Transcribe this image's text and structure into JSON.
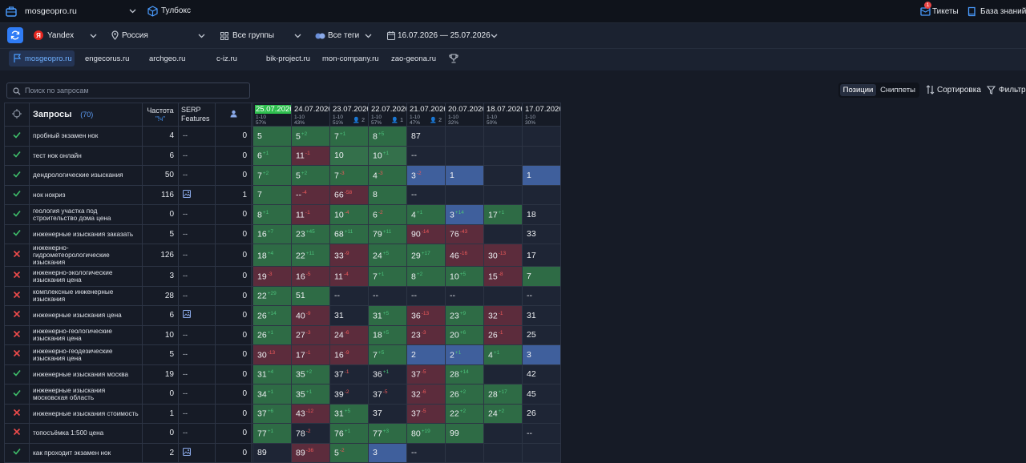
{
  "topbar": {
    "project": "mosgeopro.ru",
    "toolbox": "Тулбокс",
    "tickets": "Тикеты",
    "tickets_badge": "1",
    "knowledge": "База знаний"
  },
  "toolbar": {
    "engine": "Yandex",
    "region": "Россия",
    "groups": "Все группы",
    "tags": "Все теги",
    "date_range": "16.07.2026 — 25.07.2026"
  },
  "sites": [
    "mosgeopro.ru",
    "engecorus.ru",
    "archgeo.ru",
    "c-iz.ru",
    "bik-project.ru",
    "mon-company.ru",
    "zao-geona.ru"
  ],
  "filterbar": {
    "search_placeholder": "Поиск по запросам",
    "view_positions": "Позиции",
    "view_snippets": "Сниппеты",
    "sort": "Сортировка",
    "filter": "Фильтр"
  },
  "table": {
    "queries_label": "Запросы",
    "queries_count": "(70)",
    "freq_label": "Частота",
    "freq_sub": "\"!ч\"",
    "serp_label_1": "SERP",
    "serp_label_2": "Features",
    "dates": [
      {
        "date": "25.07.2026",
        "top": "1-10",
        "pct": "57%",
        "users": ""
      },
      {
        "date": "24.07.2026",
        "top": "1-10",
        "pct": "43%",
        "users": ""
      },
      {
        "date": "23.07.2026",
        "top": "1-10",
        "pct": "51%",
        "users": "2"
      },
      {
        "date": "22.07.2026",
        "top": "1-10",
        "pct": "57%",
        "users": "1"
      },
      {
        "date": "21.07.2026",
        "top": "1-10",
        "pct": "47%",
        "users": "2"
      },
      {
        "date": "20.07.2026",
        "top": "1-10",
        "pct": "32%",
        "users": ""
      },
      {
        "date": "18.07.2026",
        "top": "1-10",
        "pct": "50%",
        "users": ""
      },
      {
        "date": "17.07.2026",
        "top": "1-10",
        "pct": "30%",
        "users": ""
      }
    ],
    "rows": [
      {
        "ok": true,
        "q": "пробный экзамен нок",
        "f": "4",
        "s": "--",
        "u": "0",
        "cells": [
          [
            "5",
            "",
            "",
            "g"
          ],
          [
            "5",
            "2",
            "up",
            "g"
          ],
          [
            "7",
            "1",
            "up",
            "g"
          ],
          [
            "8",
            "5",
            "up",
            "g"
          ],
          [
            "87",
            "",
            "",
            "n"
          ],
          [
            "",
            "",
            "",
            "n"
          ],
          [
            "",
            "",
            "",
            "n"
          ],
          [
            "",
            "",
            "",
            "n"
          ]
        ]
      },
      {
        "ok": true,
        "q": "тест нок онлайн",
        "f": "6",
        "s": "--",
        "u": "0",
        "cells": [
          [
            "6",
            "1",
            "up",
            "g"
          ],
          [
            "11",
            "1",
            "dn",
            "r"
          ],
          [
            "10",
            "",
            "",
            "g2"
          ],
          [
            "10",
            "1",
            "up",
            "g2"
          ],
          [
            "--",
            "",
            "",
            "n"
          ],
          [
            "",
            "",
            "",
            "n"
          ],
          [
            "",
            "",
            "",
            "n"
          ],
          [
            "",
            "",
            "",
            "n"
          ]
        ]
      },
      {
        "ok": true,
        "q": "дендрологические изыскания",
        "f": "50",
        "s": "--",
        "u": "0",
        "cells": [
          [
            "7",
            "2",
            "up",
            "g"
          ],
          [
            "5",
            "2",
            "up",
            "g"
          ],
          [
            "7",
            "3",
            "dn",
            "g"
          ],
          [
            "4",
            "3",
            "dn",
            "g"
          ],
          [
            "3",
            "2",
            "dn",
            "b"
          ],
          [
            "1",
            "",
            "",
            "b"
          ],
          [
            "",
            "",
            "",
            "n"
          ],
          [
            "1",
            "",
            "",
            "b"
          ]
        ]
      },
      {
        "ok": true,
        "q": "нок нокриз",
        "f": "116",
        "s": "img",
        "u": "1",
        "cells": [
          [
            "7",
            "",
            "",
            "g"
          ],
          [
            "--",
            "4",
            "dn",
            "r"
          ],
          [
            "66",
            "58",
            "dn",
            "r"
          ],
          [
            "8",
            "",
            "",
            "g"
          ],
          [
            "--",
            "",
            "",
            "n"
          ],
          [
            "",
            "",
            "",
            "n"
          ],
          [
            "",
            "",
            "",
            "n"
          ],
          [
            "",
            "",
            "",
            "n"
          ]
        ]
      },
      {
        "ok": true,
        "q": "геология участка под строительство дома цена",
        "f": "0",
        "s": "--",
        "u": "0",
        "cells": [
          [
            "8",
            "1",
            "up",
            "g"
          ],
          [
            "11",
            "1",
            "dn",
            "r"
          ],
          [
            "10",
            "4",
            "dn",
            "g"
          ],
          [
            "6",
            "2",
            "dn",
            "g"
          ],
          [
            "4",
            "1",
            "up",
            "g"
          ],
          [
            "3",
            "14",
            "up",
            "b"
          ],
          [
            "17",
            "1",
            "up",
            "g"
          ],
          [
            "18",
            "",
            "",
            "n"
          ]
        ]
      },
      {
        "ok": true,
        "q": "инженерные изыскания заказать",
        "f": "5",
        "s": "--",
        "u": "0",
        "cells": [
          [
            "16",
            "7",
            "up",
            "g"
          ],
          [
            "23",
            "45",
            "up",
            "g"
          ],
          [
            "68",
            "11",
            "up",
            "g"
          ],
          [
            "79",
            "11",
            "up",
            "g"
          ],
          [
            "90",
            "14",
            "dn",
            "r"
          ],
          [
            "76",
            "43",
            "dn",
            "r"
          ],
          [
            "",
            "",
            "",
            "n"
          ],
          [
            "33",
            "",
            "",
            "n"
          ]
        ]
      },
      {
        "ok": false,
        "q": "инженерно-гидрометеорологические изыскания",
        "f": "126",
        "s": "--",
        "u": "0",
        "cells": [
          [
            "18",
            "4",
            "up",
            "g"
          ],
          [
            "22",
            "11",
            "up",
            "g"
          ],
          [
            "33",
            "9",
            "dn",
            "r"
          ],
          [
            "24",
            "5",
            "up",
            "g"
          ],
          [
            "29",
            "17",
            "up",
            "g"
          ],
          [
            "46",
            "16",
            "dn",
            "r"
          ],
          [
            "30",
            "13",
            "dn",
            "r"
          ],
          [
            "17",
            "",
            "",
            "n"
          ]
        ]
      },
      {
        "ok": false,
        "q": "инженерно-экологические изыскания цена",
        "f": "3",
        "s": "--",
        "u": "0",
        "cells": [
          [
            "19",
            "3",
            "dn",
            "r"
          ],
          [
            "16",
            "5",
            "dn",
            "r"
          ],
          [
            "11",
            "4",
            "dn",
            "r"
          ],
          [
            "7",
            "1",
            "up",
            "g"
          ],
          [
            "8",
            "2",
            "up",
            "g"
          ],
          [
            "10",
            "5",
            "up",
            "g"
          ],
          [
            "15",
            "8",
            "dn",
            "r"
          ],
          [
            "7",
            "",
            "",
            "g"
          ]
        ]
      },
      {
        "ok": false,
        "q": "комплексные инженерные изыскания",
        "f": "28",
        "s": "--",
        "u": "0",
        "cells": [
          [
            "22",
            "29",
            "up",
            "g"
          ],
          [
            "51",
            "",
            "",
            "g"
          ],
          [
            "--",
            "",
            "",
            "n"
          ],
          [
            "--",
            "",
            "",
            "n"
          ],
          [
            "--",
            "",
            "",
            "n"
          ],
          [
            "--",
            "",
            "",
            "n"
          ],
          [
            "",
            "",
            "",
            "n"
          ],
          [
            "--",
            "",
            "",
            "n"
          ]
        ]
      },
      {
        "ok": false,
        "q": "инженерные изыскания цена",
        "f": "6",
        "s": "img",
        "u": "0",
        "cells": [
          [
            "26",
            "14",
            "up",
            "g"
          ],
          [
            "40",
            "9",
            "dn",
            "r"
          ],
          [
            "31",
            "",
            "",
            "n"
          ],
          [
            "31",
            "5",
            "up",
            "g"
          ],
          [
            "36",
            "13",
            "dn",
            "r"
          ],
          [
            "23",
            "9",
            "up",
            "g"
          ],
          [
            "32",
            "1",
            "dn",
            "r"
          ],
          [
            "31",
            "",
            "",
            "n"
          ]
        ]
      },
      {
        "ok": false,
        "q": "инженерно-геологические изыскания цена",
        "f": "10",
        "s": "--",
        "u": "0",
        "cells": [
          [
            "26",
            "1",
            "up",
            "g"
          ],
          [
            "27",
            "3",
            "dn",
            "r"
          ],
          [
            "24",
            "6",
            "dn",
            "r"
          ],
          [
            "18",
            "5",
            "up",
            "g"
          ],
          [
            "23",
            "3",
            "dn",
            "r"
          ],
          [
            "20",
            "6",
            "up",
            "g"
          ],
          [
            "26",
            "1",
            "dn",
            "r"
          ],
          [
            "25",
            "",
            "",
            "n"
          ]
        ]
      },
      {
        "ok": false,
        "q": "инженерно-геодезические изыскания цена",
        "f": "5",
        "s": "--",
        "u": "0",
        "cells": [
          [
            "30",
            "13",
            "dn",
            "r"
          ],
          [
            "17",
            "1",
            "dn",
            "r"
          ],
          [
            "16",
            "9",
            "dn",
            "r"
          ],
          [
            "7",
            "5",
            "up",
            "g"
          ],
          [
            "2",
            "",
            "",
            "b"
          ],
          [
            "2",
            "1",
            "up",
            "b"
          ],
          [
            "4",
            "1",
            "up",
            "g"
          ],
          [
            "3",
            "",
            "",
            "b"
          ]
        ]
      },
      {
        "ok": true,
        "q": "инженерные изыскания москва",
        "f": "19",
        "s": "--",
        "u": "0",
        "cells": [
          [
            "31",
            "4",
            "up",
            "g"
          ],
          [
            "35",
            "2",
            "up",
            "g"
          ],
          [
            "37",
            "1",
            "dn",
            "n"
          ],
          [
            "36",
            "1",
            "up",
            "n"
          ],
          [
            "37",
            "5",
            "dn",
            "r"
          ],
          [
            "28",
            "14",
            "up",
            "g"
          ],
          [
            "",
            "",
            "",
            "n"
          ],
          [
            "42",
            "",
            "",
            "n"
          ]
        ]
      },
      {
        "ok": true,
        "q": "инженерные изыскания московская область",
        "f": "0",
        "s": "--",
        "u": "0",
        "cells": [
          [
            "34",
            "1",
            "up",
            "g"
          ],
          [
            "35",
            "1",
            "up",
            "g"
          ],
          [
            "39",
            "2",
            "dn",
            "n"
          ],
          [
            "37",
            "5",
            "dn",
            "n"
          ],
          [
            "32",
            "6",
            "dn",
            "r"
          ],
          [
            "26",
            "2",
            "up",
            "g"
          ],
          [
            "28",
            "17",
            "up",
            "g"
          ],
          [
            "45",
            "",
            "",
            "n"
          ]
        ]
      },
      {
        "ok": false,
        "q": "инженерные изыскания стоимость",
        "f": "1",
        "s": "--",
        "u": "0",
        "cells": [
          [
            "37",
            "6",
            "up",
            "g"
          ],
          [
            "43",
            "12",
            "dn",
            "r"
          ],
          [
            "31",
            "5",
            "up",
            "g"
          ],
          [
            "37",
            "",
            "",
            "n"
          ],
          [
            "37",
            "5",
            "dn",
            "r"
          ],
          [
            "22",
            "2",
            "up",
            "g"
          ],
          [
            "24",
            "2",
            "up",
            "g"
          ],
          [
            "26",
            "",
            "",
            "n"
          ]
        ]
      },
      {
        "ok": false,
        "q": "топосъёмка 1:500 цена",
        "f": "0",
        "s": "--",
        "u": "0",
        "cells": [
          [
            "77",
            "1",
            "up",
            "g"
          ],
          [
            "78",
            "2",
            "dn",
            "n"
          ],
          [
            "76",
            "1",
            "up",
            "g"
          ],
          [
            "77",
            "3",
            "up",
            "g"
          ],
          [
            "80",
            "19",
            "up",
            "g"
          ],
          [
            "99",
            "",
            "",
            "g"
          ],
          [
            "",
            "",
            "",
            "n"
          ],
          [
            "--",
            "",
            "",
            "n"
          ]
        ]
      },
      {
        "ok": true,
        "q": "как проходит экзамен нок",
        "f": "2",
        "s": "img",
        "u": "0",
        "cells": [
          [
            "89",
            "",
            "",
            "n"
          ],
          [
            "89",
            "36",
            "dn",
            "r"
          ],
          [
            "5",
            "2",
            "dn",
            "g"
          ],
          [
            "3",
            "",
            "",
            "b"
          ],
          [
            "--",
            "",
            "",
            "n"
          ],
          [
            "",
            "",
            "",
            "n"
          ],
          [
            "",
            "",
            "",
            "n"
          ],
          [
            "",
            "",
            "",
            "n"
          ]
        ]
      }
    ]
  }
}
